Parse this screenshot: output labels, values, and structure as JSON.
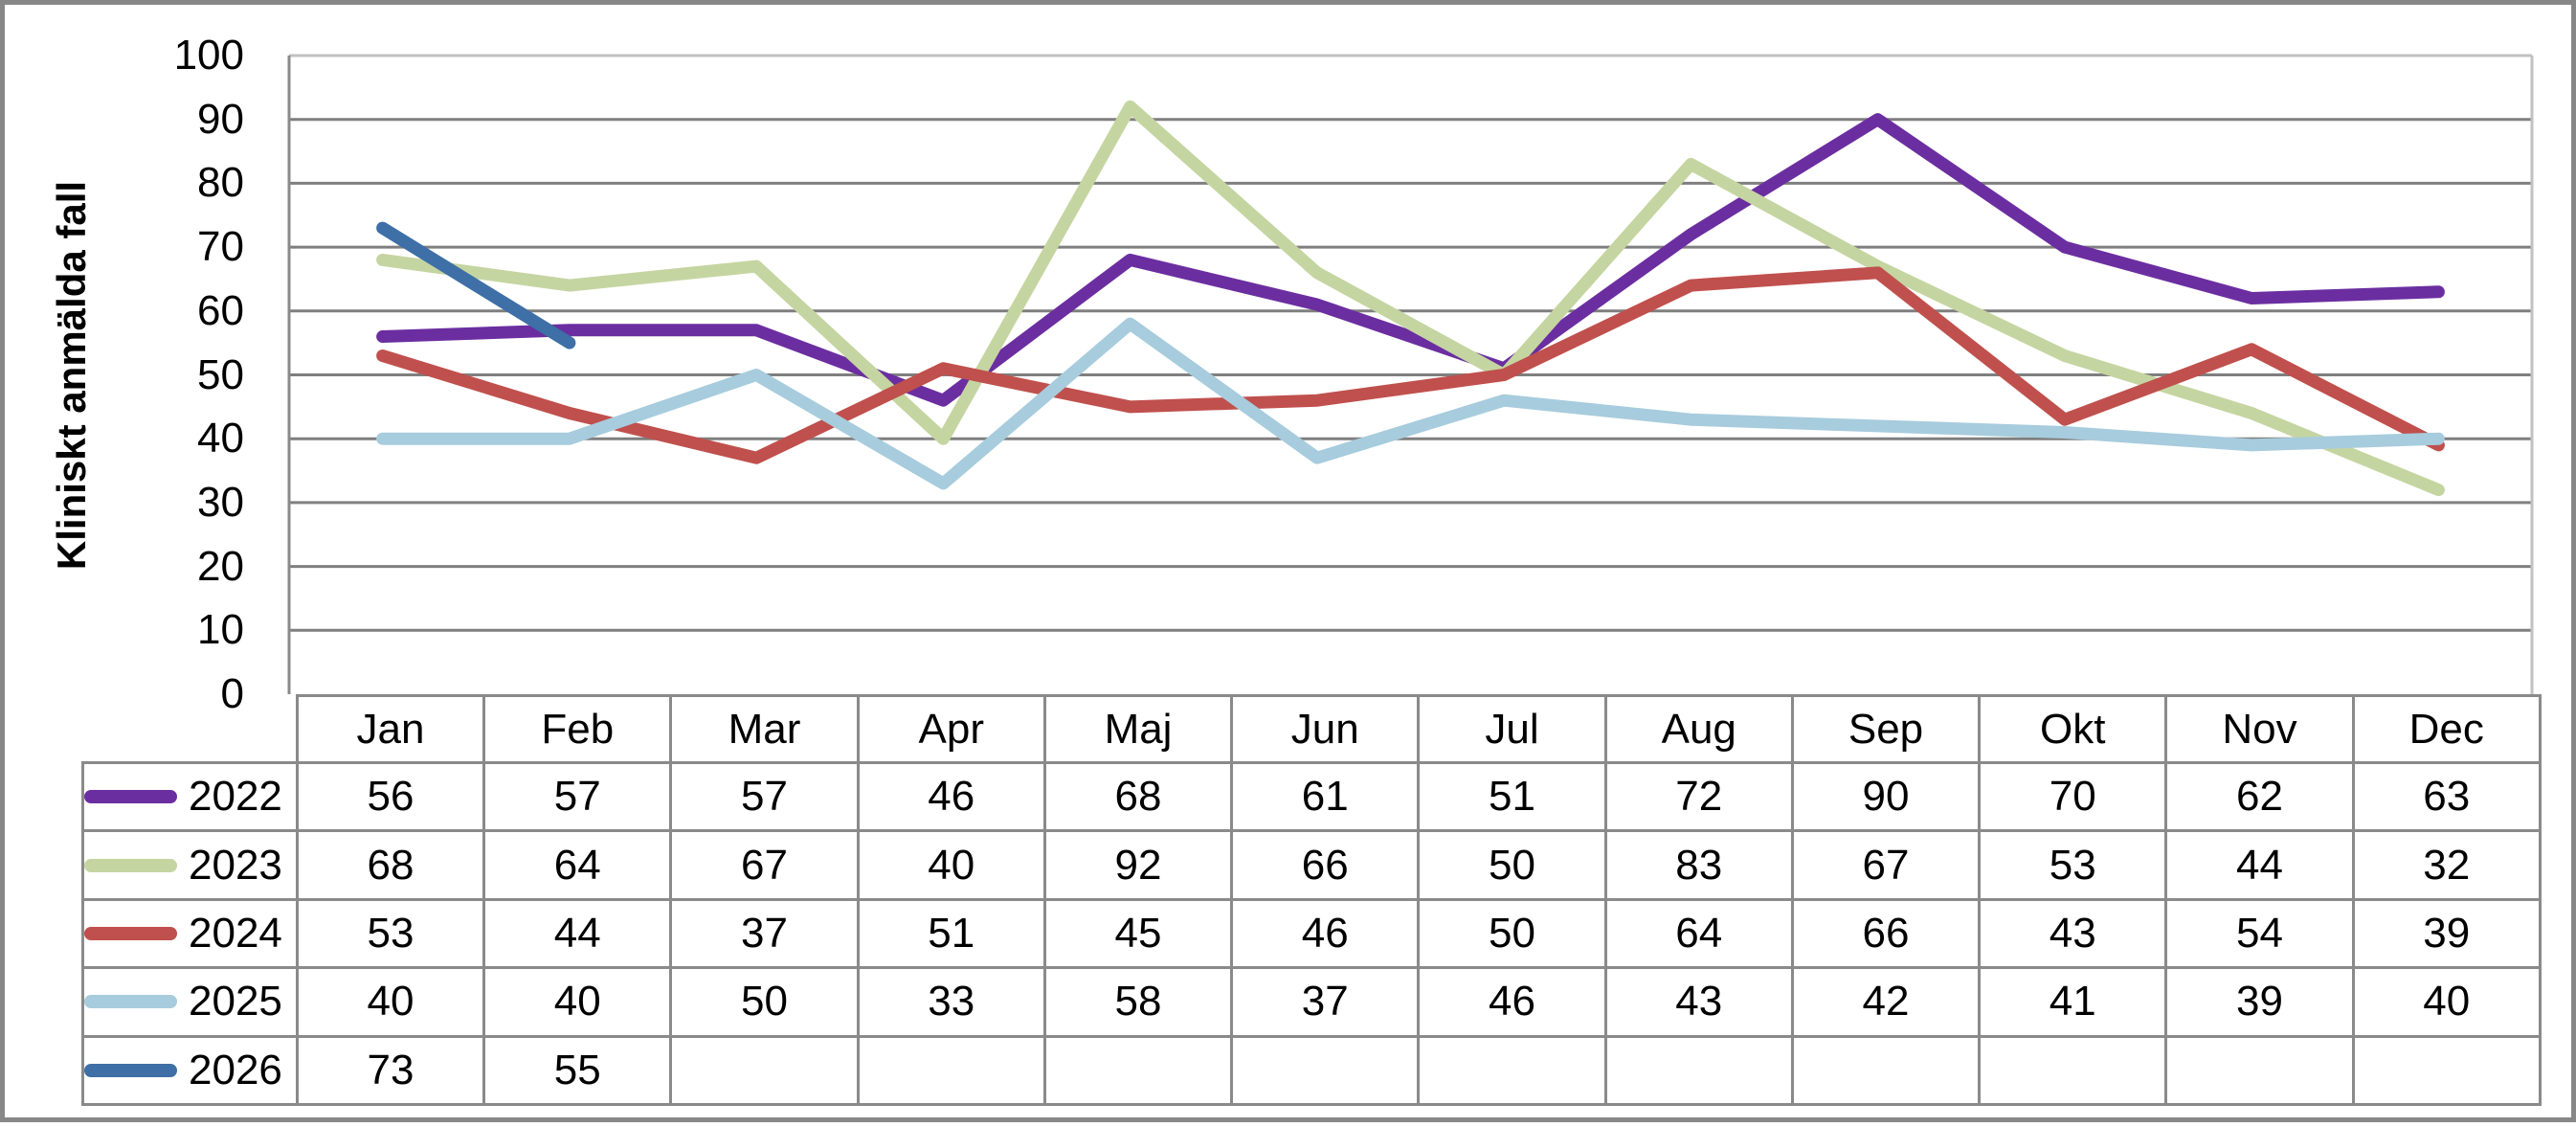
{
  "chart_data": {
    "type": "line",
    "title": "",
    "ylabel": "Kliniskt anmälda fall",
    "xlabel": "",
    "ylim": [
      0,
      100
    ],
    "yticks": [
      0,
      10,
      20,
      30,
      40,
      50,
      60,
      70,
      80,
      90,
      100
    ],
    "grid": true,
    "legend_position": "table-left",
    "categories": [
      "Jan",
      "Feb",
      "Mar",
      "Apr",
      "Maj",
      "Jun",
      "Jul",
      "Aug",
      "Sep",
      "Okt",
      "Nov",
      "Dec"
    ],
    "series": [
      {
        "name": "2022",
        "color": "#6B2EA0",
        "values": [
          56,
          57,
          57,
          46,
          68,
          61,
          51,
          72,
          90,
          70,
          62,
          63
        ]
      },
      {
        "name": "2023",
        "color": "#C5D5A1",
        "values": [
          68,
          64,
          67,
          40,
          92,
          66,
          50,
          83,
          67,
          53,
          44,
          32
        ]
      },
      {
        "name": "2024",
        "color": "#C0504D",
        "values": [
          53,
          44,
          37,
          51,
          45,
          46,
          50,
          64,
          66,
          43,
          54,
          39
        ]
      },
      {
        "name": "2025",
        "color": "#A7CCDD",
        "values": [
          40,
          40,
          50,
          33,
          58,
          37,
          46,
          43,
          42,
          41,
          39,
          40
        ]
      },
      {
        "name": "2026",
        "color": "#3E6FA6",
        "values": [
          73,
          55,
          null,
          null,
          null,
          null,
          null,
          null,
          null,
          null,
          null,
          null
        ]
      }
    ],
    "colors": {
      "grid": "#7F7F7F",
      "axis": "#8A8A8A",
      "plot_border": "#C2C2C2",
      "table_border": "#8A8A8A",
      "frame": "#878787",
      "text": "#000000"
    }
  }
}
